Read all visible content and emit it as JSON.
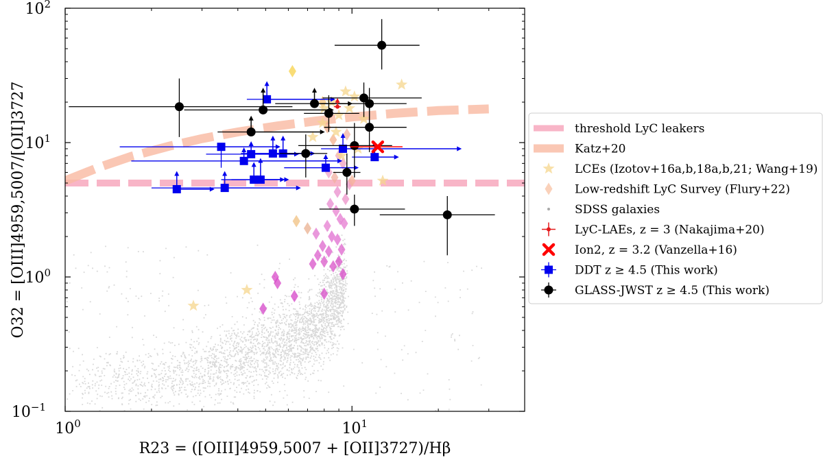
{
  "chart_data": {
    "type": "scatter",
    "x_scale": "log",
    "y_scale": "log",
    "xlim": [
      1.0,
      40.0
    ],
    "ylim": [
      0.1,
      100.0
    ],
    "xlabel": "R23 = ([OIII]4959,5007 + [OII]3727)/Hβ",
    "ylabel": "O32 = [OIII]4959,5007/[OII]3727",
    "x_ticks": [
      {
        "value": 1,
        "base": "10",
        "exp": "0"
      },
      {
        "value": 10,
        "base": "10",
        "exp": "1"
      }
    ],
    "y_ticks": [
      {
        "value": 0.1,
        "base": "10",
        "exp": "−1"
      },
      {
        "value": 1,
        "base": "10",
        "exp": "0"
      },
      {
        "value": 10,
        "base": "10",
        "exp": "1"
      },
      {
        "value": 100,
        "base": "10",
        "exp": "2"
      }
    ],
    "legend_position": "outside-right",
    "legend": [
      {
        "key": "threshold",
        "label": "threshold LyC leakers"
      },
      {
        "key": "katz",
        "label": "Katz+20"
      },
      {
        "key": "lces",
        "label": "LCEs (Izotov+16a,b,18a,b,21; Wang+19)"
      },
      {
        "key": "lzlcs",
        "label": "Low-redshift LyC Survey (Flury+22)"
      },
      {
        "key": "sdss",
        "label": "SDSS galaxies"
      },
      {
        "key": "lyclae",
        "label": "LyC-LAEs, z = 3 (Nakajima+20)"
      },
      {
        "key": "ion2",
        "label": "Ion2, z = 3.2 (Vanzella+16)"
      },
      {
        "key": "ddt",
        "label": "DDT z ≥ 4.5 (This work)"
      },
      {
        "key": "glass",
        "label": "GLASS-JWST z ≥ 4.5 (This work)"
      }
    ],
    "colors": {
      "threshold": "#f7a8bd",
      "katz": "#f9b9a1",
      "lces": "#f6d58c",
      "lzlcs_low": "#f8c2a3",
      "lzlcs_high": "#e052c8",
      "sdss": "#a9a9a9",
      "lyclae": "#e41a1c",
      "ion2": "#ff0000",
      "ddt": "#0000ee",
      "glass": "#000000"
    },
    "threshold_line": {
      "y": 5.0
    },
    "katz_curve": [
      {
        "x": 1.0,
        "y": 5.2
      },
      {
        "x": 1.3,
        "y": 6.5
      },
      {
        "x": 1.7,
        "y": 7.9
      },
      {
        "x": 2.3,
        "y": 9.4
      },
      {
        "x": 3.0,
        "y": 10.7
      },
      {
        "x": 4.0,
        "y": 12.0
      },
      {
        "x": 5.5,
        "y": 13.3
      },
      {
        "x": 7.5,
        "y": 14.5
      },
      {
        "x": 10.0,
        "y": 15.5
      },
      {
        "x": 14.0,
        "y": 16.5
      },
      {
        "x": 20.0,
        "y": 17.3
      },
      {
        "x": 30.0,
        "y": 17.8
      }
    ],
    "lces": [
      {
        "x": 8.5,
        "y": 20.0
      },
      {
        "x": 9.5,
        "y": 24.0
      },
      {
        "x": 9.8,
        "y": 18.0
      },
      {
        "x": 8.8,
        "y": 12.0
      },
      {
        "x": 7.9,
        "y": 14.0
      },
      {
        "x": 7.3,
        "y": 11.0
      },
      {
        "x": 10.5,
        "y": 9.0
      },
      {
        "x": 9.0,
        "y": 16.0
      },
      {
        "x": 12.8,
        "y": 5.2
      },
      {
        "x": 14.9,
        "y": 27.0
      },
      {
        "x": 9.2,
        "y": 8.0
      },
      {
        "x": 11.0,
        "y": 15.0
      },
      {
        "x": 2.8,
        "y": 0.61
      },
      {
        "x": 4.3,
        "y": 0.8
      },
      {
        "x": 10.2,
        "y": 22.0
      },
      {
        "x": 8.0,
        "y": 18.0
      }
    ],
    "lzlcs": [
      {
        "x": 6.2,
        "y": 34.0,
        "c": "#f7d24a"
      },
      {
        "x": 7.9,
        "y": 20.0,
        "c": "#f7c37a"
      },
      {
        "x": 8.2,
        "y": 13.0,
        "c": "#f5b08c"
      },
      {
        "x": 8.6,
        "y": 10.5,
        "c": "#f5b08c"
      },
      {
        "x": 9.6,
        "y": 11.5,
        "c": "#f4b3a2"
      },
      {
        "x": 9.0,
        "y": 8.0,
        "c": "#f1a8b8"
      },
      {
        "x": 9.3,
        "y": 7.0,
        "c": "#f0a0c0"
      },
      {
        "x": 8.3,
        "y": 6.0,
        "c": "#eda0c8"
      },
      {
        "x": 8.7,
        "y": 5.5,
        "c": "#f2b0a0"
      },
      {
        "x": 9.8,
        "y": 4.9,
        "c": "#ee98c8"
      },
      {
        "x": 10.0,
        "y": 5.2,
        "c": "#f5b69a"
      },
      {
        "x": 8.9,
        "y": 4.3,
        "c": "#ea8ccc"
      },
      {
        "x": 9.5,
        "y": 3.8,
        "c": "#ec92c8"
      },
      {
        "x": 8.4,
        "y": 3.5,
        "c": "#e88ad0"
      },
      {
        "x": 8.8,
        "y": 3.1,
        "c": "#e880d0"
      },
      {
        "x": 9.1,
        "y": 2.7,
        "c": "#e47ad0"
      },
      {
        "x": 9.4,
        "y": 2.5,
        "c": "#e67ad0"
      },
      {
        "x": 8.2,
        "y": 2.4,
        "c": "#e57cd0"
      },
      {
        "x": 8.5,
        "y": 2.0,
        "c": "#e06ed0"
      },
      {
        "x": 8.9,
        "y": 1.9,
        "c": "#e06ed0"
      },
      {
        "x": 7.5,
        "y": 2.1,
        "c": "#e276d0"
      },
      {
        "x": 7.9,
        "y": 1.7,
        "c": "#de66cc"
      },
      {
        "x": 8.3,
        "y": 1.55,
        "c": "#dd62cc"
      },
      {
        "x": 9.2,
        "y": 1.6,
        "c": "#de64cc"
      },
      {
        "x": 7.6,
        "y": 1.45,
        "c": "#dc5ecc"
      },
      {
        "x": 8.0,
        "y": 1.3,
        "c": "#da58c8"
      },
      {
        "x": 8.6,
        "y": 1.2,
        "c": "#d952c8"
      },
      {
        "x": 9.0,
        "y": 1.3,
        "c": "#d952c8"
      },
      {
        "x": 7.3,
        "y": 1.25,
        "c": "#d850c8"
      },
      {
        "x": 9.3,
        "y": 1.05,
        "c": "#d84ac8"
      },
      {
        "x": 6.4,
        "y": 2.6,
        "c": "#f0c080"
      },
      {
        "x": 7.0,
        "y": 2.3,
        "c": "#eab090"
      },
      {
        "x": 5.4,
        "y": 1.0,
        "c": "#d84ac8"
      },
      {
        "x": 6.3,
        "y": 0.72,
        "c": "#d646c8"
      },
      {
        "x": 4.9,
        "y": 0.58,
        "c": "#d444c8"
      },
      {
        "x": 8.0,
        "y": 0.75,
        "c": "#d84cc8"
      },
      {
        "x": 5.5,
        "y": 0.9,
        "c": "#d848c8"
      }
    ],
    "lyclae": [
      {
        "x": 8.9,
        "y": 18.5,
        "xerr": 0.25,
        "yerr": 2.5
      }
    ],
    "ion2": [
      {
        "x": 12.3,
        "y": 9.3
      }
    ],
    "ddt": [
      {
        "x": 2.45,
        "y": 4.5,
        "ylow": 6.0,
        "xhigh": 3.3,
        "lower_y": true,
        "lower_x": true
      },
      {
        "x": 3.5,
        "y": 9.3,
        "xlow": 1.55,
        "xhigh": 5.6,
        "ylow": 6.5,
        "lower_y": false
      },
      {
        "x": 3.6,
        "y": 4.6,
        "xlow": 2.0,
        "xhigh": 6.6,
        "ylow": 6.0,
        "lower_y": true
      },
      {
        "x": 4.2,
        "y": 7.3,
        "xlow": 1.7,
        "xhigh": 9.2,
        "ylow": 9.0,
        "lower_y": true
      },
      {
        "x": 4.45,
        "y": 8.2,
        "xlow": 3.1,
        "xhigh": 6.5,
        "ylow": 10.0,
        "lower_y": true
      },
      {
        "x": 4.55,
        "y": 5.3,
        "xlow": 3.5,
        "xhigh": 6.0,
        "ylow": 7.0,
        "lower_y": true
      },
      {
        "x": 4.8,
        "y": 5.3,
        "xlow": 3.8,
        "xhigh": 5.8,
        "ylow": 7.5,
        "lower_y": true
      },
      {
        "x": 5.05,
        "y": 21.0,
        "xlow": 4.3,
        "xhigh": 8.7,
        "ylow": 28.0,
        "lower_y": true,
        "lower_x": true
      },
      {
        "x": 5.3,
        "y": 8.3,
        "xlow": 4.1,
        "xhigh": 7.0,
        "ylow": 11.0,
        "lower_y": true
      },
      {
        "x": 5.75,
        "y": 8.3,
        "xlow": 4.6,
        "xhigh": 7.4,
        "ylow": 11.0,
        "lower_y": true
      },
      {
        "x": 8.1,
        "y": 6.5,
        "xlow": 5.8,
        "xhigh": 10.5,
        "ylow": 8.0,
        "lower_y": true
      },
      {
        "x": 9.3,
        "y": 9.0,
        "xlow": 7.8,
        "xhigh": 24.0,
        "ylow": 11.5,
        "lower_y": true,
        "lower_x": true
      },
      {
        "x": 12.0,
        "y": 7.8,
        "xlow": 10.0,
        "xhigh": 14.5,
        "ylow": 10.0,
        "lower_y": true
      }
    ],
    "glass": [
      {
        "x": 2.5,
        "y": 18.5,
        "xlow": 1.03,
        "xhigh": 6.2,
        "ylow": 11.0,
        "yhigh": 30.0
      },
      {
        "x": 4.45,
        "y": 12.0,
        "xlow": 3.4,
        "xhigh": 8.0,
        "ylow": 9.5,
        "yhigh": 15.5,
        "lower_y": true
      },
      {
        "x": 4.9,
        "y": 17.5,
        "xlow": 2.6,
        "xhigh": 8.6,
        "ylow": 12.5,
        "yhigh": 25.0,
        "lower_y": true
      },
      {
        "x": 6.9,
        "y": 8.3,
        "xlow": 5.6,
        "xhigh": 8.2,
        "ylow": 5.5,
        "yhigh": 11.5
      },
      {
        "x": 7.4,
        "y": 19.5,
        "xlow": 5.4,
        "xhigh": 10.0,
        "ylow": 14.5,
        "yhigh": 25.0,
        "lower_y": true
      },
      {
        "x": 8.3,
        "y": 16.5,
        "xlow": 6.8,
        "xhigh": 10.6,
        "ylow": 12.0,
        "yhigh": 22.5
      },
      {
        "x": 9.6,
        "y": 6.0,
        "xlow": 8.6,
        "xhigh": 10.7,
        "ylow": 4.1,
        "yhigh": 8.3
      },
      {
        "x": 10.2,
        "y": 9.5,
        "xlow": 6.5,
        "xhigh": 13.8,
        "ylow": 5.5,
        "yhigh": 14.0
      },
      {
        "x": 10.2,
        "y": 3.2,
        "xlow": 7.7,
        "xhigh": 15.3,
        "ylow": 2.4,
        "yhigh": 4.1
      },
      {
        "x": 11.0,
        "y": 21.5,
        "xlow": 7.9,
        "xhigh": 17.5,
        "ylow": 15.5,
        "yhigh": 28.0
      },
      {
        "x": 11.5,
        "y": 13.0,
        "xlow": 8.0,
        "xhigh": 15.5,
        "ylow": 8.5,
        "yhigh": 18.5
      },
      {
        "x": 11.5,
        "y": 19.5,
        "xlow": 7.8,
        "xhigh": 15.5,
        "ylow": 14.0,
        "yhigh": 25.5
      },
      {
        "x": 12.7,
        "y": 53.0,
        "xlow": 8.7,
        "xhigh": 17.2,
        "ylow": 35.0,
        "yhigh": 83.0
      },
      {
        "x": 21.5,
        "y": 2.9,
        "xlow": 12.5,
        "xhigh": 31.5,
        "ylow": 1.45,
        "yhigh": 4.0
      }
    ]
  }
}
